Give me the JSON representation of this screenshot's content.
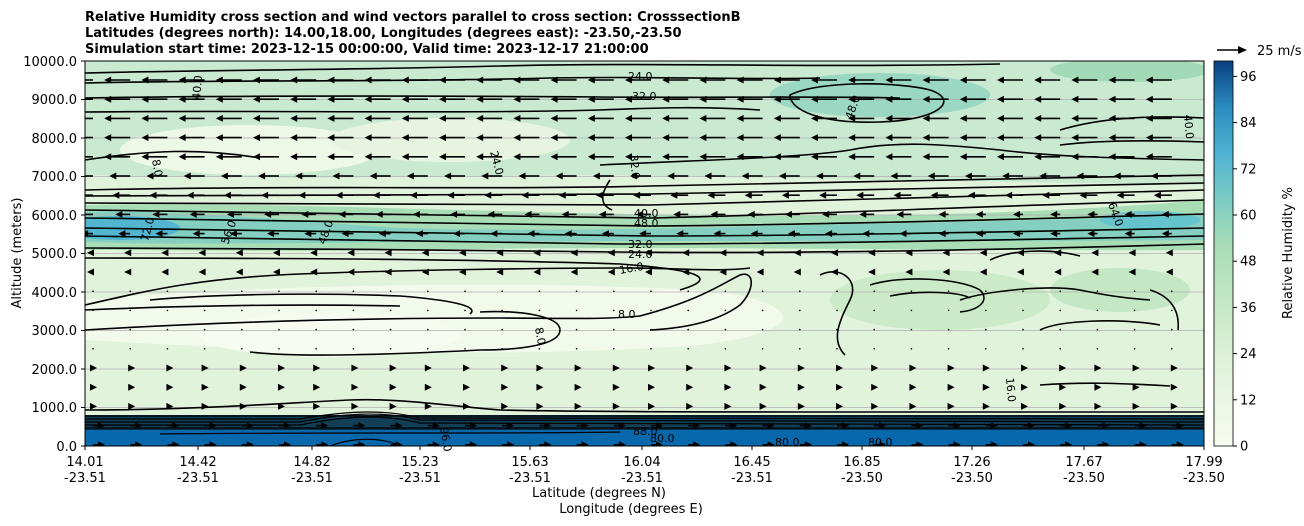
{
  "chart_data": {
    "type": "heatmap",
    "title_lines": [
      "Relative Humidity cross section and wind vectors parallel to cross section: CrosssectionB",
      "Latitudes (degrees north): 14.00,18.00, Longitudes (degrees east): -23.50,-23.50",
      "Simulation start time: 2023-12-15 00:00:00, Valid time: 2023-12-17 21:00:00"
    ],
    "ylabel": "Altitude (meters)",
    "xlabel_lat": "Latitude (degrees N)",
    "xlabel_lon": "Longitude (degrees E)",
    "ylim": [
      0,
      10000
    ],
    "y_ticks": [
      "0.0",
      "1000.0",
      "2000.0",
      "3000.0",
      "4000.0",
      "5000.0",
      "6000.0",
      "7000.0",
      "8000.0",
      "9000.0",
      "10000.0"
    ],
    "x_ticks": [
      {
        "lat": "14.01",
        "lon": "-23.51"
      },
      {
        "lat": "14.42",
        "lon": "-23.51"
      },
      {
        "lat": "14.82",
        "lon": "-23.51"
      },
      {
        "lat": "15.23",
        "lon": "-23.51"
      },
      {
        "lat": "15.63",
        "lon": "-23.51"
      },
      {
        "lat": "16.04",
        "lon": "-23.51"
      },
      {
        "lat": "16.45",
        "lon": "-23.51"
      },
      {
        "lat": "16.85",
        "lon": "-23.50"
      },
      {
        "lat": "17.26",
        "lon": "-23.50"
      },
      {
        "lat": "17.67",
        "lon": "-23.50"
      },
      {
        "lat": "17.99",
        "lon": "-23.50"
      }
    ],
    "colorbar": {
      "label": "Relative Humidity %",
      "range": [
        0,
        100
      ],
      "ticks": [
        "0",
        "12",
        "24",
        "36",
        "48",
        "60",
        "72",
        "84",
        "96"
      ]
    },
    "quiver_key": "25 m/s",
    "contour_labels": [
      "8.0",
      "16.0",
      "24.0",
      "32.0",
      "40.0",
      "48.0",
      "56.0",
      "64.0",
      "72.0",
      "80.0",
      "88.0",
      "96.0"
    ],
    "colors": {
      "low": "#f7fcf0",
      "mid": "#a8ddb5",
      "high": "#084081"
    }
  }
}
